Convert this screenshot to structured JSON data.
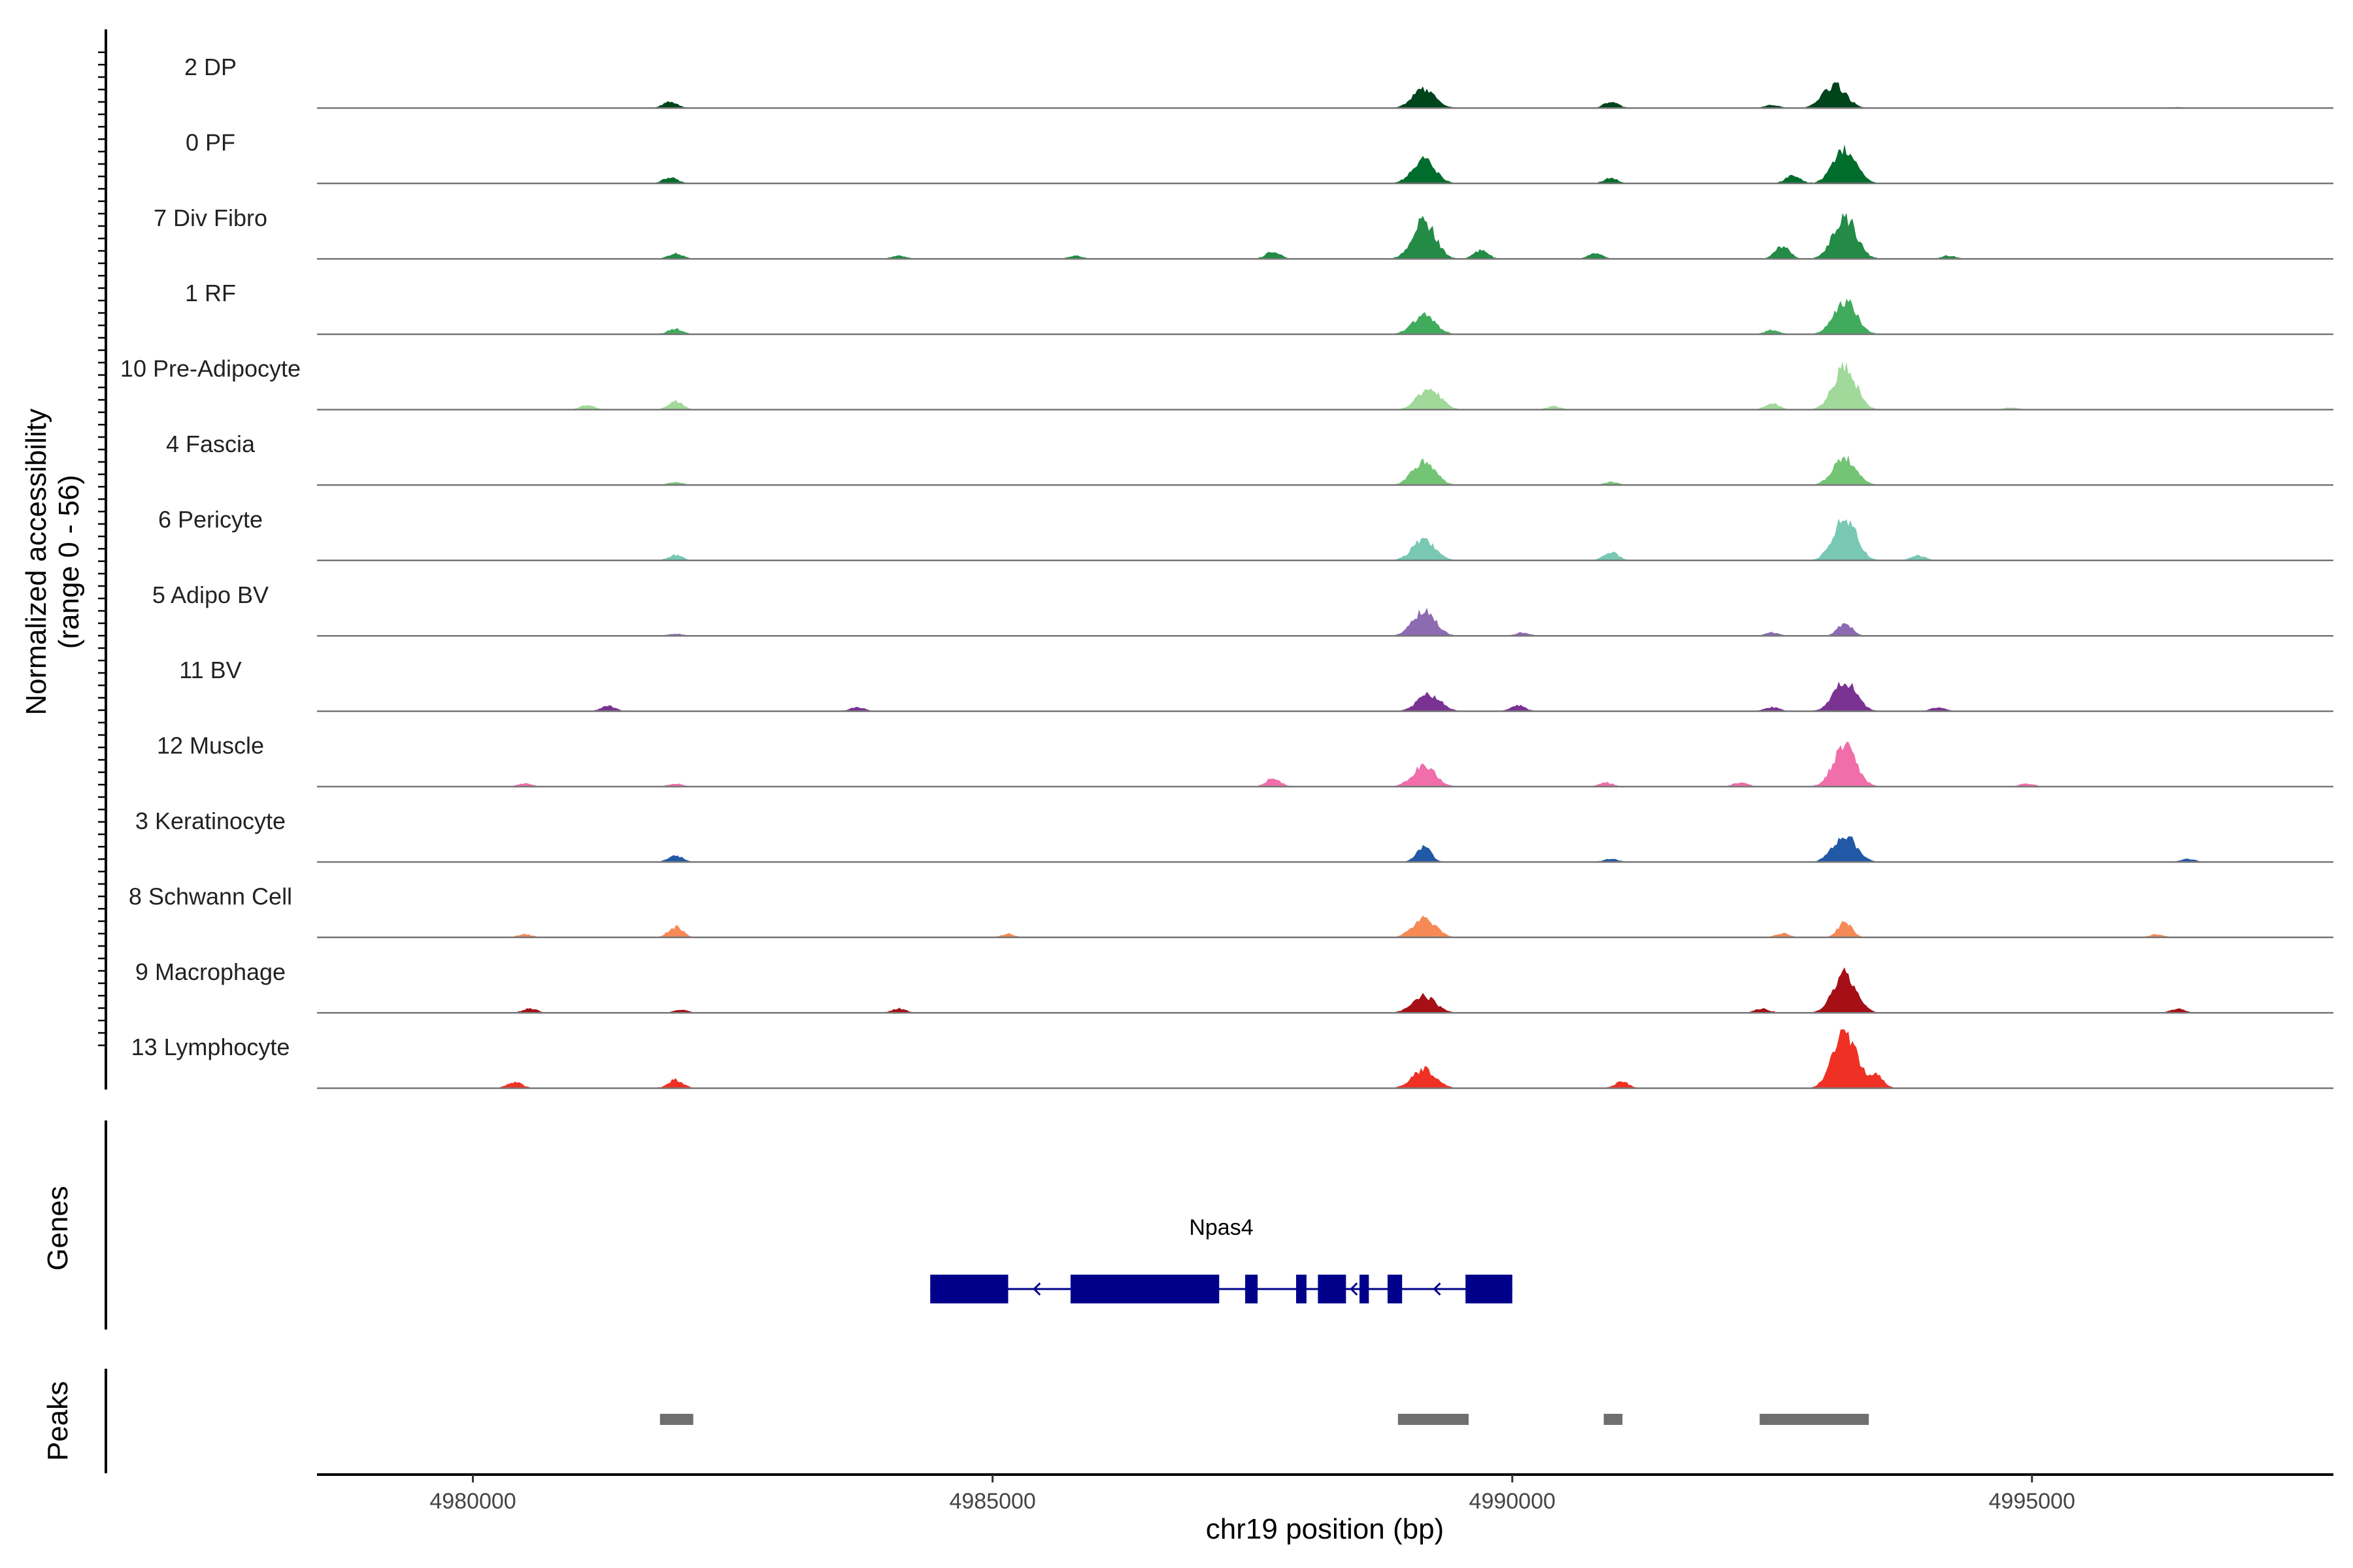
{
  "chart_data": {
    "type": "area",
    "title": "",
    "ylabel_line1": "Normalized accessibility",
    "ylabel_line2": "(range 0 - 56)",
    "y_range": [
      0,
      56
    ],
    "xlabel": "chr19 position (bp)",
    "xlim": [
      4978500,
      4997900
    ],
    "x_ticks": [
      4980000,
      4985000,
      4990000,
      4995000
    ],
    "x_tick_labels": [
      "4980000",
      "4985000",
      "4990000",
      "4995000"
    ],
    "tracks": [
      {
        "name": "2 DP",
        "color": "#00441b",
        "peaks": [
          [
            4981900,
            6
          ],
          [
            4989150,
            18
          ],
          [
            4990950,
            6
          ],
          [
            4992500,
            3
          ],
          [
            4993100,
            22
          ],
          [
            4996400,
            1
          ]
        ]
      },
      {
        "name": "0 PF",
        "color": "#006d2c",
        "peaks": [
          [
            4981900,
            6
          ],
          [
            4989150,
            22
          ],
          [
            4990950,
            5
          ],
          [
            4992700,
            8
          ],
          [
            4993200,
            34
          ]
        ]
      },
      {
        "name": "7 Div Fibro",
        "color": "#238b45",
        "peaks": [
          [
            4981950,
            5
          ],
          [
            4984100,
            3
          ],
          [
            4985800,
            3
          ],
          [
            4987700,
            7
          ],
          [
            4989150,
            36
          ],
          [
            4989700,
            8
          ],
          [
            4990800,
            5
          ],
          [
            4992600,
            12
          ],
          [
            4993200,
            40
          ],
          [
            4994200,
            3
          ]
        ]
      },
      {
        "name": "1 RF",
        "color": "#41ab5d",
        "peaks": [
          [
            4981950,
            5
          ],
          [
            4989150,
            18
          ],
          [
            4992500,
            4
          ],
          [
            4993200,
            32
          ]
        ]
      },
      {
        "name": "10 Pre-Adipocyte",
        "color": "#a1d99b",
        "peaks": [
          [
            4981100,
            4
          ],
          [
            4981950,
            8
          ],
          [
            4989200,
            20
          ],
          [
            4990400,
            3
          ],
          [
            4992500,
            6
          ],
          [
            4993200,
            40
          ],
          [
            4994800,
            2
          ]
        ]
      },
      {
        "name": "4 Fascia",
        "color": "#74c476",
        "peaks": [
          [
            4981950,
            3
          ],
          [
            4989150,
            22
          ],
          [
            4990950,
            3
          ],
          [
            4993200,
            26
          ]
        ]
      },
      {
        "name": "6 Pericyte",
        "color": "#78c8b4",
        "peaks": [
          [
            4981950,
            5
          ],
          [
            4989150,
            20
          ],
          [
            4990950,
            8
          ],
          [
            4993200,
            40
          ],
          [
            4993900,
            5
          ]
        ]
      },
      {
        "name": "5 Adipo BV",
        "color": "#8c6bb1",
        "peaks": [
          [
            4981950,
            2
          ],
          [
            4989150,
            24
          ],
          [
            4990100,
            3
          ],
          [
            4992500,
            3
          ],
          [
            4993200,
            12
          ]
        ]
      },
      {
        "name": "11 BV",
        "color": "#7a3392",
        "peaks": [
          [
            4981300,
            5
          ],
          [
            4983700,
            4
          ],
          [
            4989200,
            16
          ],
          [
            4990050,
            6
          ],
          [
            4992500,
            4
          ],
          [
            4993200,
            28
          ],
          [
            4994100,
            4
          ]
        ]
      },
      {
        "name": "12 Muscle",
        "color": "#f06eaa",
        "peaks": [
          [
            4980500,
            3
          ],
          [
            4981950,
            3
          ],
          [
            4987700,
            8
          ],
          [
            4989150,
            20
          ],
          [
            4990900,
            4
          ],
          [
            4992200,
            4
          ],
          [
            4993200,
            38
          ],
          [
            4994950,
            3
          ]
        ]
      },
      {
        "name": "3 Keratinocyte",
        "color": "#2159a6",
        "peaks": [
          [
            4981950,
            6
          ],
          [
            4989150,
            14
          ],
          [
            4990950,
            3
          ],
          [
            4993200,
            26
          ],
          [
            4996500,
            3
          ]
        ]
      },
      {
        "name": "8 Schwann Cell",
        "color": "#f58a57",
        "peaks": [
          [
            4980500,
            3
          ],
          [
            4981950,
            10
          ],
          [
            4985150,
            3
          ],
          [
            4989150,
            18
          ],
          [
            4992600,
            4
          ],
          [
            4993200,
            14
          ],
          [
            4996200,
            3
          ]
        ]
      },
      {
        "name": "9 Macrophage",
        "color": "#a50f15",
        "peaks": [
          [
            4980550,
            4
          ],
          [
            4982000,
            3
          ],
          [
            4984100,
            4
          ],
          [
            4989150,
            16
          ],
          [
            4992400,
            4
          ],
          [
            4993200,
            36
          ],
          [
            4996400,
            4
          ]
        ]
      },
      {
        "name": "13 Lymphocyte",
        "color": "#ee3124",
        "peaks": [
          [
            4980400,
            6
          ],
          [
            4981950,
            8
          ],
          [
            4989150,
            18
          ],
          [
            4991050,
            6
          ],
          [
            4993200,
            56
          ],
          [
            4993500,
            12
          ]
        ]
      }
    ],
    "genes_label": "Genes",
    "gene": {
      "name": "Npas4",
      "color": "#00008b",
      "strand": "-",
      "start": 4984400,
      "end": 4990000,
      "exons": [
        [
          4984400,
          4985150
        ],
        [
          4985750,
          4987180
        ],
        [
          4987430,
          4987550
        ],
        [
          4987920,
          4988020
        ],
        [
          4988130,
          4988400
        ],
        [
          4988530,
          4988620
        ],
        [
          4988800,
          4988940
        ],
        [
          4989550,
          4990000
        ]
      ]
    },
    "peaks_label": "Peaks",
    "peaks_color": "#6f6f6f",
    "peak_regions": [
      [
        4981800,
        4982120
      ],
      [
        4988900,
        4989580
      ],
      [
        4990880,
        4991060
      ],
      [
        4992380,
        4993430
      ]
    ]
  }
}
